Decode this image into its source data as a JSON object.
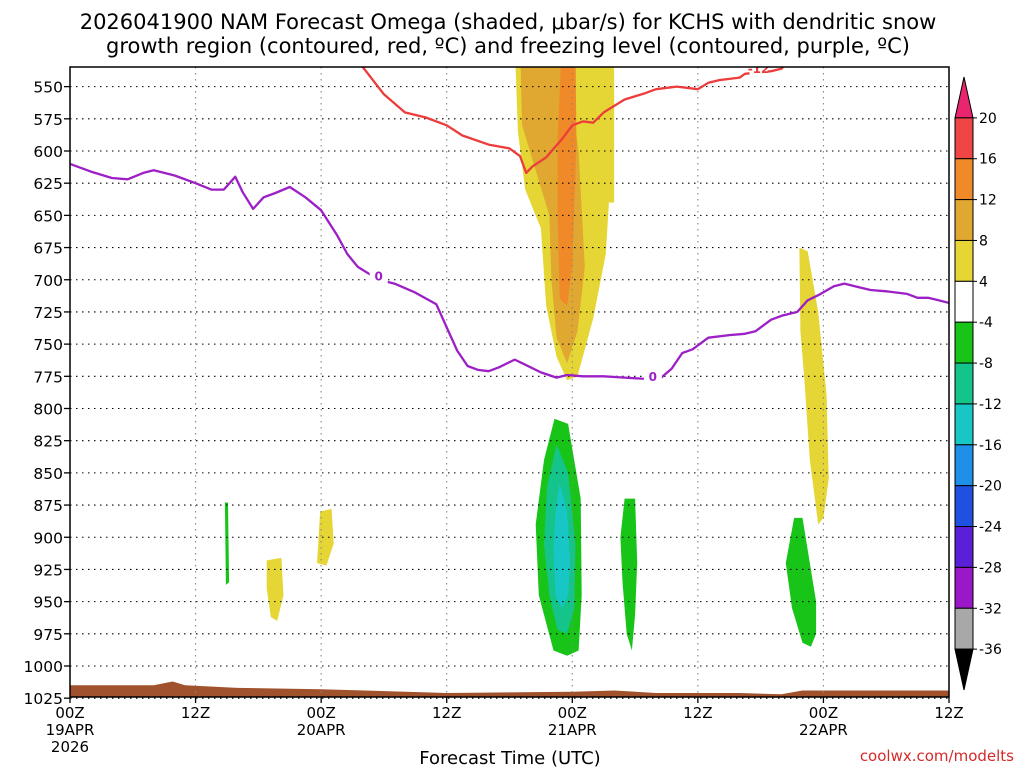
{
  "chart_data": {
    "type": "area",
    "title_line1": "2026041900 NAM Forecast Omega (shaded, μbar/s) for KCHS with dendritic snow",
    "title_line2": "growth region (contoured, red, ºC) and freezing level (contoured, purple, ºC)",
    "xlabel": "Forecast Time (UTC)",
    "credit": "coolwx.com/modelts",
    "x_range_hours": [
      0,
      84
    ],
    "y_range_mb": [
      1035,
      515
    ],
    "y_ticks": [
      550,
      575,
      600,
      625,
      650,
      675,
      700,
      725,
      750,
      775,
      800,
      825,
      850,
      875,
      900,
      925,
      950,
      975,
      1000,
      1025
    ],
    "x_ticks": [
      {
        "h": 0,
        "l1": "00Z",
        "l2": "19APR",
        "l3": "2026"
      },
      {
        "h": 12,
        "l1": "12Z",
        "l2": "",
        "l3": ""
      },
      {
        "h": 24,
        "l1": "00Z",
        "l2": "20APR",
        "l3": ""
      },
      {
        "h": 36,
        "l1": "12Z",
        "l2": "",
        "l3": ""
      },
      {
        "h": 48,
        "l1": "00Z",
        "l2": "21APR",
        "l3": ""
      },
      {
        "h": 60,
        "l1": "12Z",
        "l2": "",
        "l3": ""
      },
      {
        "h": 72,
        "l1": "00Z",
        "l2": "22APR",
        "l3": ""
      },
      {
        "h": 84,
        "l1": "12Z",
        "l2": "",
        "l3": ""
      }
    ],
    "colorbar": {
      "levels": [
        "20",
        "16",
        "12",
        "8",
        "4",
        "-4",
        "-8",
        "-12",
        "-16",
        "-20",
        "-24",
        "-28",
        "-32",
        "-36"
      ],
      "colors": [
        "#e8256e",
        "#f04545",
        "#f08a28",
        "#e0a830",
        "#e6d635",
        "#ffffff",
        "#18c418",
        "#14c48a",
        "#18c6c6",
        "#1e90e8",
        "#2050e0",
        "#5a20d8",
        "#9a18c8",
        "#a8a8a8",
        "#000000"
      ]
    },
    "omega_regions": [
      {
        "name": "rising 4-8",
        "color": "#e6d635",
        "points": [
          [
            42.5,
            515
          ],
          [
            52,
            515
          ],
          [
            52,
            640
          ],
          [
            51.5,
            640
          ],
          [
            51.2,
            680
          ],
          [
            50,
            730
          ],
          [
            48.5,
            775
          ],
          [
            47.5,
            778
          ],
          [
            46.5,
            760
          ],
          [
            45.5,
            720
          ],
          [
            45,
            660
          ],
          [
            43.5,
            630
          ],
          [
            42.8,
            585
          ]
        ]
      },
      {
        "name": "rising 8-12",
        "color": "#e0a830",
        "points": [
          [
            43,
            515
          ],
          [
            47.2,
            515
          ],
          [
            48.6,
            600
          ],
          [
            49.2,
            690
          ],
          [
            48.5,
            740
          ],
          [
            47.5,
            765
          ],
          [
            46.5,
            745
          ],
          [
            46,
            700
          ],
          [
            45.8,
            650
          ],
          [
            44.5,
            615
          ],
          [
            43.2,
            580
          ]
        ]
      },
      {
        "name": "rising 12-16",
        "color": "#f08a28",
        "points": [
          [
            47,
            517
          ],
          [
            48.3,
            517
          ],
          [
            48.4,
            595
          ],
          [
            48,
            690
          ],
          [
            47.5,
            720
          ],
          [
            46.8,
            715
          ],
          [
            46.6,
            650
          ],
          [
            46.6,
            590
          ]
        ]
      },
      {
        "name": "rising 4-8 late",
        "color": "#e6d635",
        "points": [
          [
            69.7,
            675
          ],
          [
            70.5,
            678
          ],
          [
            71.5,
            725
          ],
          [
            72.3,
            790
          ],
          [
            72.5,
            855
          ],
          [
            72,
            885
          ],
          [
            71.5,
            890
          ],
          [
            70.7,
            840
          ],
          [
            70.2,
            780
          ],
          [
            69.8,
            740
          ]
        ]
      },
      {
        "name": "rising 4-8 small1",
        "color": "#e6d635",
        "points": [
          [
            18.8,
            918
          ],
          [
            20.2,
            916
          ],
          [
            20.4,
            945
          ],
          [
            19.8,
            965
          ],
          [
            19.2,
            962
          ],
          [
            18.8,
            940
          ]
        ]
      },
      {
        "name": "rising 4-8 small2",
        "color": "#e6d635",
        "points": [
          [
            23.9,
            880
          ],
          [
            25,
            878
          ],
          [
            25.2,
            905
          ],
          [
            24.5,
            922
          ],
          [
            23.6,
            920
          ]
        ]
      },
      {
        "name": "sinking -4 main",
        "color": "#18c418",
        "points": [
          [
            46.3,
            808
          ],
          [
            47.6,
            812
          ],
          [
            48.8,
            870
          ],
          [
            48.9,
            945
          ],
          [
            48.6,
            988
          ],
          [
            47.5,
            992
          ],
          [
            46.2,
            988
          ],
          [
            44.8,
            945
          ],
          [
            44.5,
            890
          ],
          [
            45.3,
            840
          ]
        ]
      },
      {
        "name": "sinking -8",
        "color": "#14c48a",
        "points": [
          [
            46.5,
            828
          ],
          [
            47.6,
            850
          ],
          [
            48.3,
            905
          ],
          [
            48.2,
            955
          ],
          [
            47.5,
            975
          ],
          [
            46.6,
            972
          ],
          [
            45.8,
            945
          ],
          [
            45.3,
            905
          ],
          [
            45.6,
            860
          ]
        ]
      },
      {
        "name": "sinking -12",
        "color": "#18c6c6",
        "points": [
          [
            46.8,
            858
          ],
          [
            47.5,
            880
          ],
          [
            47.8,
            920
          ],
          [
            47.6,
            945
          ],
          [
            47,
            955
          ],
          [
            46.4,
            945
          ],
          [
            46.2,
            910
          ],
          [
            46.4,
            880
          ]
        ]
      },
      {
        "name": "sinking -4 b",
        "color": "#18c418",
        "points": [
          [
            53,
            870
          ],
          [
            54,
            870
          ],
          [
            54.2,
            920
          ],
          [
            54,
            960
          ],
          [
            53.7,
            988
          ],
          [
            53.2,
            975
          ],
          [
            52.8,
            935
          ],
          [
            52.6,
            900
          ]
        ]
      },
      {
        "name": "sinking -4 c",
        "color": "#18c418",
        "points": [
          [
            69.2,
            885
          ],
          [
            70,
            885
          ],
          [
            71.3,
            950
          ],
          [
            71.3,
            975
          ],
          [
            70.8,
            985
          ],
          [
            70,
            982
          ],
          [
            69,
            955
          ],
          [
            68.4,
            920
          ]
        ]
      },
      {
        "name": "sinking -4 d",
        "color": "#18c418",
        "points": [
          [
            14.8,
            873
          ],
          [
            15.1,
            873
          ],
          [
            15.2,
            935
          ],
          [
            14.9,
            937
          ]
        ]
      }
    ],
    "ground": {
      "color": "#a0522d",
      "top_mb": [
        [
          0,
          1015
        ],
        [
          8,
          1015
        ],
        [
          9.8,
          1012
        ],
        [
          11,
          1015
        ],
        [
          16,
          1017
        ],
        [
          24,
          1018
        ],
        [
          36,
          1021
        ],
        [
          48,
          1020
        ],
        [
          52,
          1019
        ],
        [
          56,
          1021
        ],
        [
          64,
          1021
        ],
        [
          68,
          1022
        ],
        [
          70,
          1019
        ],
        [
          76,
          1019
        ],
        [
          84,
          1019
        ]
      ]
    },
    "dgz_lines": [
      {
        "color": "#ec3c3c",
        "label": "-12",
        "points": [
          [
            25.5,
            515
          ],
          [
            28,
            535
          ],
          [
            30,
            556
          ],
          [
            32,
            570
          ],
          [
            34,
            574
          ],
          [
            36,
            580
          ],
          [
            37.5,
            588
          ],
          [
            40,
            595
          ],
          [
            42,
            598
          ],
          [
            43,
            604
          ],
          [
            43.6,
            617
          ],
          [
            44.2,
            612
          ],
          [
            45.5,
            605
          ],
          [
            47,
            591
          ],
          [
            48,
            580
          ],
          [
            49,
            577
          ],
          [
            50,
            578
          ],
          [
            51,
            570
          ],
          [
            53,
            560
          ],
          [
            55,
            555
          ],
          [
            56,
            552
          ],
          [
            58,
            550
          ],
          [
            60,
            552
          ],
          [
            61,
            547
          ],
          [
            62,
            545
          ],
          [
            63,
            544
          ],
          [
            64,
            543
          ],
          [
            64.5,
            540
          ],
          [
            67,
            538
          ],
          [
            68,
            536
          ],
          [
            68.5,
            531
          ],
          [
            71,
            530
          ],
          [
            72,
            527
          ],
          [
            74,
            532
          ],
          [
            75.5,
            532
          ],
          [
            77,
            525
          ],
          [
            78,
            527
          ],
          [
            80,
            528
          ],
          [
            82,
            526
          ],
          [
            83,
            524
          ],
          [
            84,
            526
          ]
        ]
      },
      {
        "color": "#ec3c3c",
        "label": "",
        "points": [
          [
            42.8,
            515
          ],
          [
            44,
            530
          ],
          [
            45,
            527
          ],
          [
            46,
            520
          ],
          [
            46.8,
            515
          ]
        ]
      }
    ],
    "freezing_line": {
      "color": "#9d1fc6",
      "label": "0",
      "points": [
        [
          0,
          610
        ],
        [
          2,
          616
        ],
        [
          4,
          621
        ],
        [
          5.5,
          622
        ],
        [
          7,
          617
        ],
        [
          8,
          615
        ],
        [
          9,
          617
        ],
        [
          10,
          619
        ],
        [
          12,
          625
        ],
        [
          13.5,
          630
        ],
        [
          14.7,
          630
        ],
        [
          15.8,
          620
        ],
        [
          16.5,
          632
        ],
        [
          17.5,
          645
        ],
        [
          18.5,
          636
        ],
        [
          19.5,
          633
        ],
        [
          21,
          628
        ],
        [
          22.5,
          636
        ],
        [
          24,
          646
        ],
        [
          25.5,
          665
        ],
        [
          26.5,
          680
        ],
        [
          27.5,
          690
        ],
        [
          28.5,
          695
        ],
        [
          29.5,
          700
        ],
        [
          31,
          703
        ],
        [
          33,
          710
        ],
        [
          35,
          719
        ],
        [
          36,
          737
        ],
        [
          37,
          755
        ],
        [
          38,
          767
        ],
        [
          39,
          770
        ],
        [
          40,
          771
        ],
        [
          41,
          768
        ],
        [
          42.5,
          762
        ],
        [
          43.5,
          766
        ],
        [
          45,
          772
        ],
        [
          46.5,
          776
        ],
        [
          47.5,
          774
        ],
        [
          49,
          775
        ],
        [
          51,
          775
        ],
        [
          53,
          776
        ],
        [
          55,
          777
        ],
        [
          56.5,
          776
        ],
        [
          57.5,
          769
        ],
        [
          58.5,
          757
        ],
        [
          59.5,
          754
        ],
        [
          61,
          745
        ],
        [
          63,
          743
        ],
        [
          64.5,
          742
        ],
        [
          65.5,
          740
        ],
        [
          67,
          731
        ],
        [
          68,
          728
        ],
        [
          69.5,
          725
        ],
        [
          70.5,
          716
        ],
        [
          71.5,
          712
        ],
        [
          73,
          705
        ],
        [
          74,
          703
        ],
        [
          75,
          705
        ],
        [
          76.5,
          708
        ],
        [
          78,
          709
        ],
        [
          80,
          711
        ],
        [
          81,
          714
        ],
        [
          82,
          714
        ],
        [
          83,
          716
        ],
        [
          84,
          718
        ]
      ]
    }
  }
}
